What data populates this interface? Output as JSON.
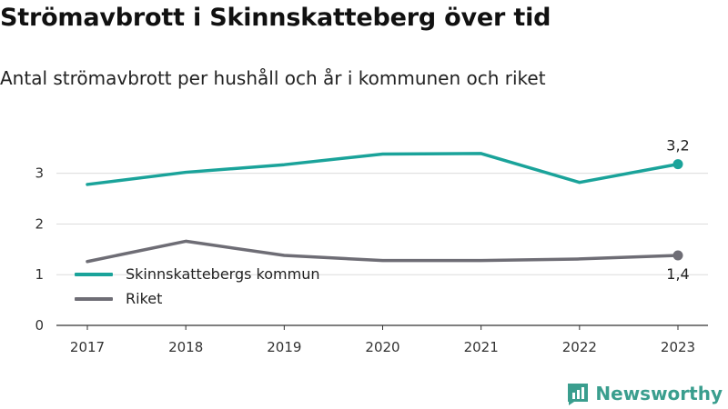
{
  "title": "Strömavbrott i Skinnskatteberg över tid",
  "subtitle": "Antal strömavbrott per hushåll och år i kommunen och riket",
  "brand": {
    "name": "Newsworthy",
    "color": "#3a9e8e",
    "icon": "newsworthy-logo-icon"
  },
  "chart_data": {
    "type": "line",
    "x": [
      "2017",
      "2018",
      "2019",
      "2020",
      "2021",
      "2022",
      "2023"
    ],
    "series": [
      {
        "name": "Skinnskattebergs kommun",
        "color": "#1aa39a",
        "values": [
          2.78,
          3.02,
          3.17,
          3.38,
          3.39,
          2.82,
          3.18
        ],
        "end_label": "3,2"
      },
      {
        "name": "Riket",
        "color": "#6e6d75",
        "values": [
          1.26,
          1.66,
          1.38,
          1.28,
          1.28,
          1.31,
          1.38
        ],
        "end_label": "1,4"
      }
    ],
    "yticks": [
      "0",
      "1",
      "2",
      "3"
    ],
    "ylim": [
      0,
      3.55
    ],
    "grid": true,
    "legend": "bottom-left",
    "xlabel": "",
    "ylabel": ""
  }
}
